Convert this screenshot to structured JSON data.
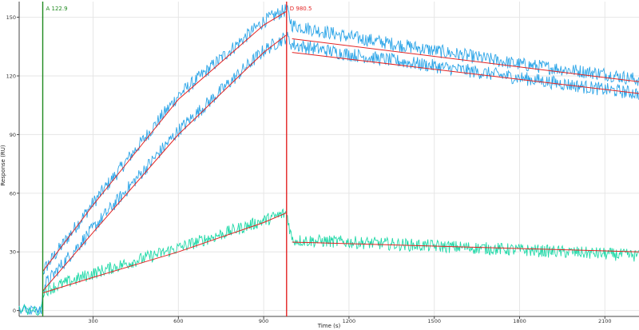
{
  "chart_data": {
    "type": "line",
    "xlabel": "Time (s)",
    "ylabel": "Response (RU)",
    "xlim": [
      40,
      2220
    ],
    "ylim": [
      -3,
      158
    ],
    "xticks": [
      300,
      600,
      900,
      1200,
      1500,
      1800,
      2100
    ],
    "yticks": [
      0,
      30,
      60,
      90,
      120,
      150
    ],
    "grid": true,
    "markers": [
      {
        "label": "A 122.9",
        "x": 122.9,
        "color": "#1e8a1e"
      },
      {
        "label": "D 980.5",
        "x": 980.5,
        "color": "#e32424"
      }
    ],
    "series": [
      {
        "color": "#2ea6e8",
        "values_approx": [
          [
            122.9,
            20
          ],
          [
            300,
            55
          ],
          [
            600,
            110
          ],
          [
            900,
            148
          ],
          [
            980.5,
            154
          ],
          [
            1000,
            146
          ],
          [
            1200,
            140
          ],
          [
            1500,
            133
          ],
          [
            1800,
            126
          ],
          [
            2100,
            121
          ],
          [
            2220,
            118
          ]
        ]
      },
      {
        "color": "#2ea6e8",
        "values_approx": [
          [
            122.9,
            12
          ],
          [
            300,
            42
          ],
          [
            600,
            92
          ],
          [
            900,
            133
          ],
          [
            980.5,
            140
          ],
          [
            1000,
            136
          ],
          [
            1200,
            131
          ],
          [
            1500,
            125
          ],
          [
            1800,
            119
          ],
          [
            2100,
            113
          ],
          [
            2220,
            111
          ]
        ]
      },
      {
        "color": "#21d9a8",
        "values_approx": [
          [
            122.9,
            10
          ],
          [
            300,
            19
          ],
          [
            600,
            32
          ],
          [
            900,
            46
          ],
          [
            980.5,
            50
          ],
          [
            1000,
            36
          ],
          [
            1200,
            35
          ],
          [
            1500,
            33
          ],
          [
            1800,
            31
          ],
          [
            2100,
            29
          ],
          [
            2220,
            28
          ]
        ]
      }
    ],
    "fits": [
      {
        "color": "#e32424",
        "values_approx": [
          [
            122.9,
            20
          ],
          [
            300,
            54
          ],
          [
            600,
            108
          ],
          [
            900,
            146
          ],
          [
            980.5,
            153
          ],
          [
            1000,
            139
          ],
          [
            2220,
            117
          ]
        ]
      },
      {
        "color": "#e32424",
        "values_approx": [
          [
            122.9,
            10
          ],
          [
            300,
            40
          ],
          [
            600,
            90
          ],
          [
            900,
            132
          ],
          [
            980.5,
            141
          ],
          [
            1000,
            132
          ],
          [
            2220,
            111
          ]
        ]
      },
      {
        "color": "#e32424",
        "values_approx": [
          [
            122.9,
            9
          ],
          [
            300,
            17
          ],
          [
            600,
            30
          ],
          [
            900,
            45
          ],
          [
            980.5,
            50
          ],
          [
            1000,
            35
          ],
          [
            2220,
            30
          ]
        ]
      }
    ]
  }
}
